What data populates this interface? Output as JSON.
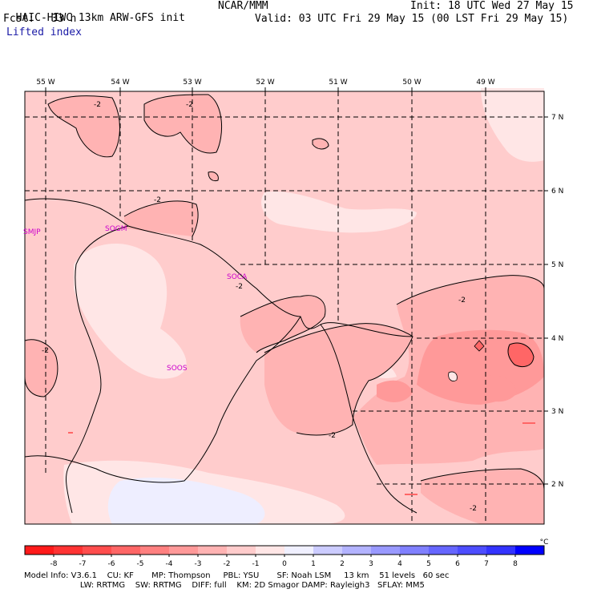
{
  "header": {
    "model_title": "HAIC-HIWC 13km ARW-GFS init",
    "org": "NCAR/MMM",
    "init": "Init: 18 UTC Wed 27 May 15",
    "fcst_label": "Fcst:",
    "fcst_value": "33 h",
    "valid": "Valid: 03 UTC Fri 29 May 15 (00 LST Fri 29 May 15)",
    "field": "Lifted index"
  },
  "map": {
    "lon_labels": [
      "55 W",
      "54 W",
      "53 W",
      "52 W",
      "51 W",
      "50 W",
      "49 W"
    ],
    "lat_labels": [
      "7 N",
      "6 N",
      "5 N",
      "4 N",
      "3 N",
      "2 N"
    ],
    "stations": [
      {
        "id": "SMJP",
        "name": "SMJP"
      },
      {
        "id": "SOGM",
        "name": "SOGM"
      },
      {
        "id": "SOCA",
        "name": "SOCA"
      },
      {
        "id": "SOOS",
        "name": "SOOS"
      }
    ],
    "contour_labels": [
      "-2",
      "-2",
      "-2",
      "-2",
      "-2",
      "-2",
      "-2",
      "-2"
    ],
    "contour_value": -2
  },
  "colorbar": {
    "ticks": [
      "-8",
      "-7",
      "-6",
      "-5",
      "-4",
      "-3",
      "-2",
      "-1",
      "0",
      "1",
      "2",
      "3",
      "4",
      "5",
      "6",
      "7",
      "8"
    ],
    "unit": "°C",
    "colors": [
      "#ff1a1a",
      "#ff3333",
      "#ff4d4d",
      "#ff6666",
      "#ff8080",
      "#ff9999",
      "#ffb3b3",
      "#ffcccc",
      "#ffe6e6",
      "#f0f0ff",
      "#ccccff",
      "#b3b3ff",
      "#9999ff",
      "#8080ff",
      "#6666ff",
      "#4d4dff",
      "#3333ff",
      "#0000ff"
    ]
  },
  "footer": {
    "line1": "Model Info: V3.6.1    CU: KF       MP: Thompson     PBL: YSU       SF: Noah LSM     13 km    51 levels   60 sec",
    "line2": "                      LW: RRTMG    SW: RRTMG    DIFF: full    KM: 2D Smagor DAMP: Rayleigh3   SFLAY: MM5"
  }
}
